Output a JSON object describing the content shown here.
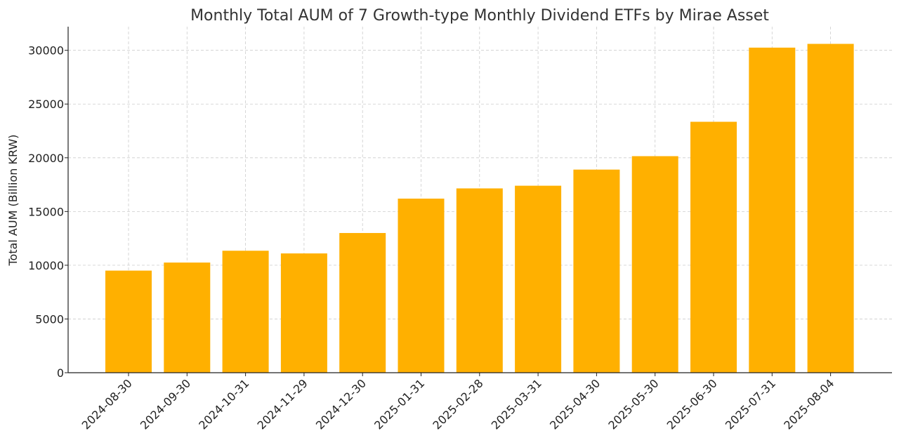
{
  "chart_data": {
    "type": "bar",
    "title": "Monthly Total AUM of 7 Growth-type Monthly Dividend ETFs by Mirae Asset",
    "xlabel": "",
    "ylabel": "Total AUM (Billion KRW)",
    "categories": [
      "2024-08-30",
      "2024-09-30",
      "2024-10-31",
      "2024-11-29",
      "2024-12-30",
      "2025-01-31",
      "2025-02-28",
      "2025-03-31",
      "2025-04-30",
      "2025-05-30",
      "2025-06-30",
      "2025-07-31",
      "2025-08-04"
    ],
    "values": [
      9500,
      10250,
      11350,
      11100,
      13000,
      16200,
      17150,
      17400,
      18900,
      20150,
      23350,
      30250,
      30600
    ],
    "ylim": [
      0,
      32200
    ],
    "yticks": [
      0,
      5000,
      10000,
      15000,
      20000,
      25000,
      30000
    ],
    "grid": true,
    "bar_color": "#FFB000",
    "grid_color": "#cccccc",
    "axis_color": "#222222"
  }
}
